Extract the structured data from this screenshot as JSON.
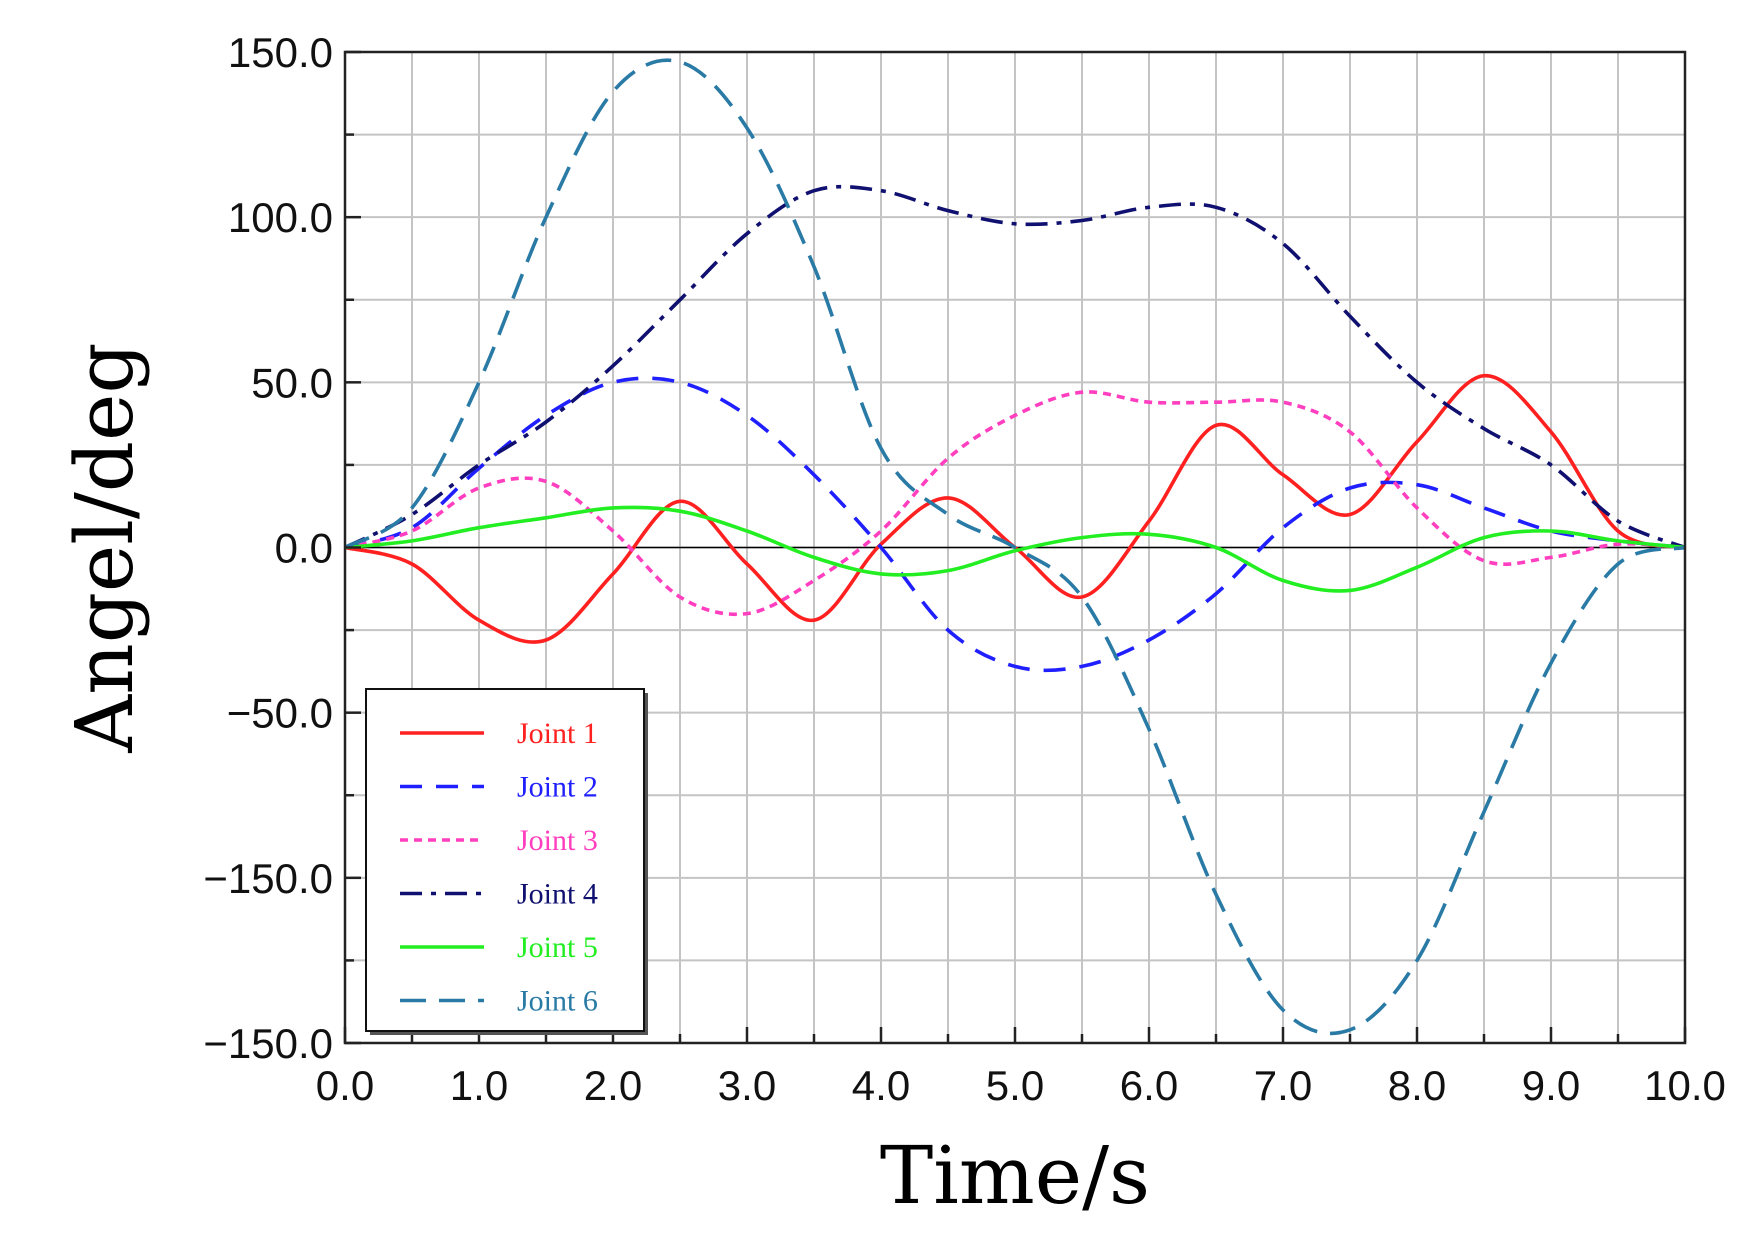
{
  "chart_data": {
    "type": "line",
    "title": "",
    "xlabel": "Time/s",
    "ylabel": "Angel/deg",
    "xlim": [
      0,
      10
    ],
    "ylim": [
      -150,
      150
    ],
    "grid": true,
    "legend_position": "bottom-left",
    "x_ticks": [
      "0.0",
      "1.0",
      "2.0",
      "3.0",
      "4.0",
      "5.0",
      "6.0",
      "7.0",
      "8.0",
      "9.0",
      "10.0"
    ],
    "y_ticks": [
      "150.0",
      "100.0",
      "50.0",
      "0.0",
      "−50.0",
      "−150.0",
      "−150.0"
    ],
    "x": [
      0,
      0.5,
      1,
      1.5,
      2,
      2.5,
      3,
      3.5,
      4,
      4.5,
      5,
      5.5,
      6,
      6.5,
      7,
      7.5,
      8,
      8.5,
      9,
      9.5,
      10
    ],
    "series": [
      {
        "name": "Joint 1",
        "color": "#ff2020",
        "dash": "solid",
        "values": [
          0,
          -5,
          -22,
          -28,
          -8,
          14,
          -5,
          -22,
          1,
          15,
          0,
          -15,
          8,
          37,
          22,
          10,
          32,
          52,
          35,
          5,
          0
        ]
      },
      {
        "name": "Joint 2",
        "color": "#1f1fff",
        "dash": "dash",
        "values": [
          0,
          6,
          24,
          40,
          50,
          50,
          40,
          22,
          0,
          -25,
          -36,
          -36,
          -28,
          -14,
          6,
          18,
          19,
          12,
          5,
          2,
          0
        ]
      },
      {
        "name": "Joint 3",
        "color": "#ff3fbf",
        "dash": "dot",
        "values": [
          0,
          5,
          18,
          20,
          5,
          -15,
          -20,
          -10,
          5,
          27,
          40,
          47,
          44,
          44,
          44,
          35,
          12,
          -4,
          -3,
          1,
          0
        ]
      },
      {
        "name": "Joint 4",
        "color": "#101070",
        "dash": "dashdot",
        "values": [
          0,
          10,
          25,
          38,
          55,
          75,
          95,
          108,
          108,
          102,
          98,
          99,
          103,
          103,
          92,
          70,
          50,
          36,
          25,
          8,
          0
        ]
      },
      {
        "name": "Joint 5",
        "color": "#22ee22",
        "dash": "solid",
        "values": [
          0,
          2,
          6,
          9,
          12,
          11,
          5,
          -3,
          -8,
          -7,
          -1,
          3,
          4,
          0,
          -10,
          -13,
          -6,
          3,
          5,
          2,
          0
        ]
      },
      {
        "name": "Joint 6",
        "color": "#2a7aa6",
        "dash": "longdash",
        "values": [
          0,
          12,
          50,
          100,
          138,
          147,
          127,
          85,
          30,
          10,
          0,
          -15,
          -55,
          -105,
          -140,
          -146,
          -125,
          -80,
          -35,
          -5,
          0
        ]
      }
    ]
  }
}
